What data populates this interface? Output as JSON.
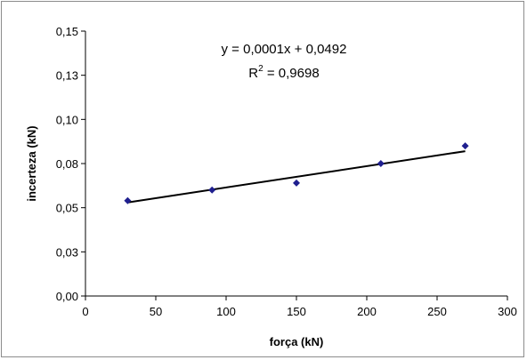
{
  "chart_data": {
    "type": "scatter",
    "xlabel": "força (kN)",
    "ylabel": "incerteza (kN)",
    "xlim": [
      0,
      300
    ],
    "ylim": [
      0,
      0.15
    ],
    "xticks": [
      0,
      50,
      100,
      150,
      200,
      250,
      300
    ],
    "xtick_labels": [
      "0",
      "50",
      "100",
      "150",
      "200",
      "250",
      "300"
    ],
    "yticks": [
      0,
      0.025,
      0.05,
      0.075,
      0.1,
      0.125,
      0.15
    ],
    "ytick_labels": [
      "0,00",
      "0,03",
      "0,05",
      "0,08",
      "0,10",
      "0,13",
      "0,15"
    ],
    "grid": false,
    "legend": "none",
    "marker": "diamond",
    "marker_color": "#1f1f8f",
    "line_color": "#000000",
    "series": [
      {
        "x": [
          30,
          90,
          150,
          210,
          270
        ],
        "y": [
          0.054,
          0.06,
          0.064,
          0.075,
          0.085
        ]
      }
    ],
    "trendline": {
      "type": "linear",
      "x_range": [
        30,
        270
      ],
      "y_range": [
        0.053,
        0.082
      ],
      "equation": "y = 0,0001x + 0,0492",
      "r2_prefix": "R",
      "r2_sup": "2",
      "r2_value": " = 0,9698"
    }
  }
}
